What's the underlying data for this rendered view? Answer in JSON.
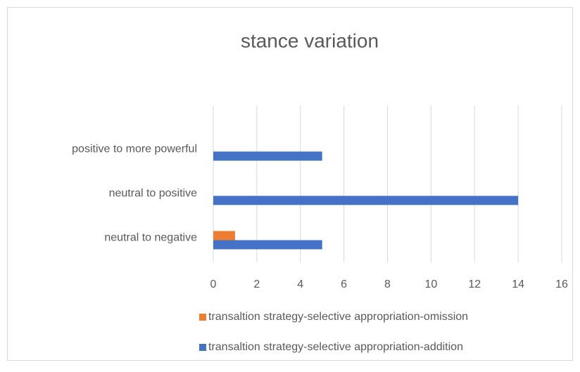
{
  "chart_data": {
    "type": "bar",
    "orientation": "horizontal",
    "title": "stance variation",
    "categories": [
      "neutral to negative",
      "neutral to positive",
      "positive to more powerful"
    ],
    "series": [
      {
        "name": "transaltion strategy-selective appropriation-omission",
        "color": "#ed7d31",
        "values": [
          1,
          0,
          0
        ]
      },
      {
        "name": "transaltion strategy-selective appropriation-addition",
        "color": "#4472c4",
        "values": [
          5,
          14,
          5
        ]
      }
    ],
    "xlim": [
      0,
      16
    ],
    "xticks": [
      0,
      2,
      4,
      6,
      8,
      10,
      12,
      14,
      16
    ],
    "grid": true,
    "legend": "bottom"
  }
}
